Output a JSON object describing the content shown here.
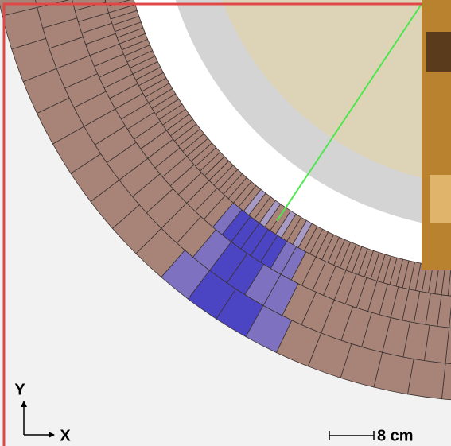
{
  "axes": {
    "y_label": "Y",
    "x_label": "X"
  },
  "scale": {
    "label": "8 cm"
  }
}
